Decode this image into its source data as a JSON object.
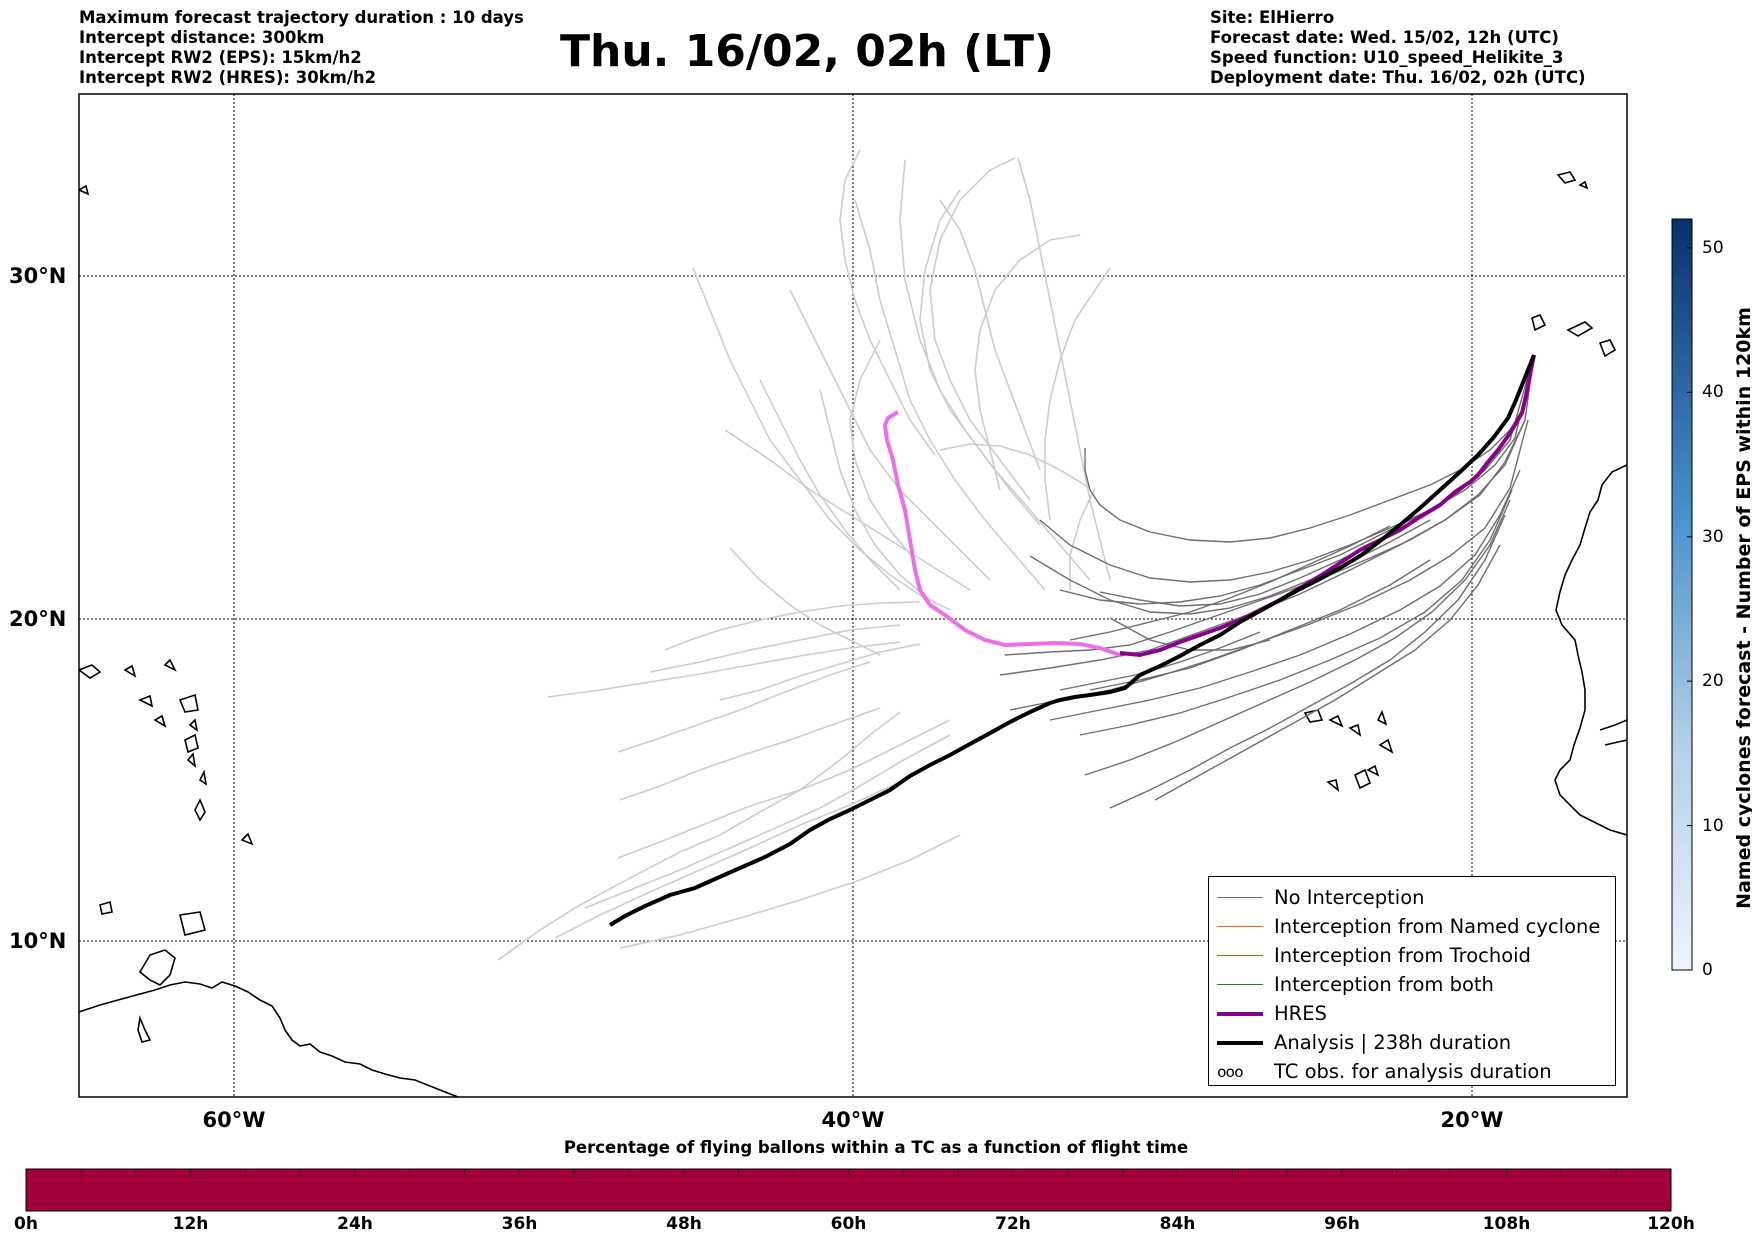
{
  "header": {
    "left_lines": [
      "Maximum forecast trajectory duration : 10 days",
      "Intercept distance: 300km",
      "Intercept RW2 (EPS):  15km/h2",
      "Intercept RW2 (HRES): 30km/h2"
    ],
    "title": "Thu. 16/02, 02h (LT)",
    "right_lines": [
      "Site: ElHierro",
      "Forecast date: Wed. 15/02, 12h (UTC)",
      "Speed function: U10_speed_Helikite_3",
      "Deployment date: Thu. 16/02, 02h (UTC)"
    ]
  },
  "map": {
    "lat_labels": [
      "30°N",
      "20°N",
      "10°N"
    ],
    "lon_labels": [
      "60°W",
      "40°W",
      "20°W"
    ],
    "extent": {
      "lon_min": -65,
      "lon_max": -15,
      "lat_min": 5.4,
      "lat_max": 34.7
    },
    "colors": {
      "hres": "#8b008b",
      "hres_faded": "#ee6ee8",
      "analysis": "#000000",
      "eps_dark": "#6e6e6e",
      "eps_light": "#cccccc"
    },
    "coastline_icon": "coastline-outline"
  },
  "legend": {
    "items": [
      {
        "label": "No Interception",
        "color": "#6e6e6e",
        "width": 1.2,
        "name": "legend-no-interception"
      },
      {
        "label": "Interception from Named cyclone",
        "color": "#ff5a1f",
        "width": 1.2,
        "name": "legend-named-cyclone"
      },
      {
        "label": "Interception from Trochoid",
        "color": "#808000",
        "width": 1.2,
        "name": "legend-trochoid"
      },
      {
        "label": "Interception from both",
        "color": "#1a8a1a",
        "width": 1.2,
        "name": "legend-both"
      },
      {
        "label": "HRES",
        "color": "#8b008b",
        "width": 4,
        "name": "legend-hres"
      },
      {
        "label": "Analysis | 238h duration",
        "color": "#000000",
        "width": 4,
        "name": "legend-analysis"
      },
      {
        "label": "TC obs. for analysis duration",
        "symbol": "໐໐໐",
        "name": "legend-tc-obs"
      }
    ]
  },
  "vertical_colorbar": {
    "label": "Named cyclones forecast - Number of EPS within 120km",
    "ticks": [
      "0",
      "10",
      "20",
      "30",
      "40",
      "50"
    ],
    "range": [
      0,
      52
    ],
    "color_low": "#eaf2fb",
    "color_high": "#08306b"
  },
  "time_colorbar": {
    "title": "Percentage of flying ballons within a TC as a function of flight time",
    "ticks": [
      "0h",
      "12h",
      "24h",
      "36h",
      "48h",
      "60h",
      "72h",
      "84h",
      "96h",
      "108h",
      "120h"
    ],
    "fill_color": "#a1003c"
  }
}
